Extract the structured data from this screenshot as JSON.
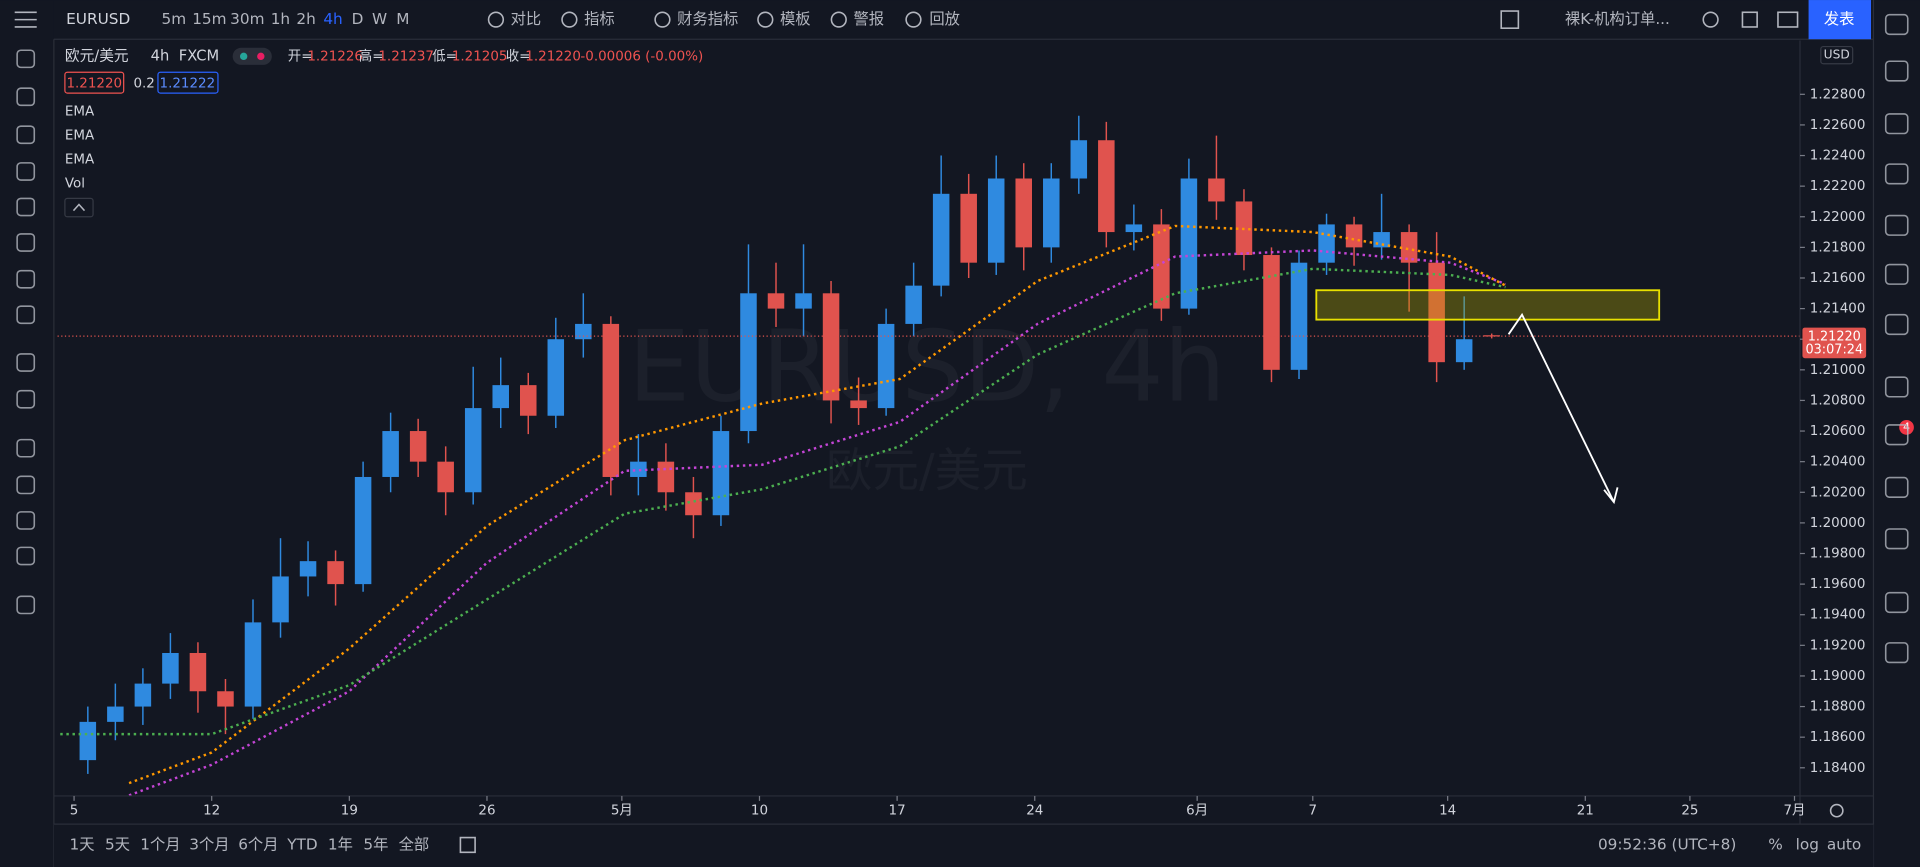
{
  "toolbar": {
    "symbol": "EURUSD",
    "timeframes": [
      "5m",
      "15m",
      "30m",
      "1h",
      "2h",
      "4h",
      "D",
      "W",
      "M"
    ],
    "buttons": [
      "对比",
      "指标",
      "财务指标",
      "模板",
      "警报",
      "回放"
    ],
    "layout_name": "裸K-机构订单...",
    "publish": "发表"
  },
  "legend": {
    "symbol": "欧元/美元",
    "interval": "4h",
    "source": "FXCM",
    "open_label": "开=",
    "open": "1.21226",
    "high_label": "高=",
    "high": "1.21237",
    "low_label": "低=",
    "low": "1.21205",
    "close_label": "收=",
    "close": "1.21220",
    "change": "-0.00006 (-0.00%)",
    "bid": "1.21220",
    "spread": "0.2",
    "ask": "1.21222",
    "indicators": [
      "EMA",
      "EMA",
      "EMA",
      "Vol"
    ]
  },
  "watermark": {
    "title": "EURUSD, 4h",
    "subtitle": "欧元/美元"
  },
  "chart_data": {
    "type": "candlestick",
    "currency": "USD",
    "x": [
      0.5,
      1.5,
      2.5,
      3.5,
      4.5,
      5.5,
      6.5,
      7.5,
      8.5,
      9.5,
      10.5,
      11.5,
      12.5,
      13.5,
      14.5,
      15.5,
      16.5,
      17.5,
      18.5,
      19.5,
      20.5,
      21.5,
      22.5,
      23.5,
      24.5,
      25.5,
      26.5,
      27.5,
      28.5,
      29.5,
      30.5,
      31.5,
      32.5,
      33.5,
      34.5,
      35.5,
      36.5,
      37.5,
      38.5,
      39.5,
      40.5,
      41.5,
      42.5,
      43.5,
      44.5,
      45.5,
      46.5,
      47.5,
      48.5,
      49.5,
      50.5,
      51.5
    ],
    "open": [
      1.1845,
      1.187,
      1.188,
      1.1895,
      1.1915,
      1.189,
      1.188,
      1.1935,
      1.1965,
      1.1975,
      1.196,
      1.203,
      1.206,
      1.204,
      1.202,
      1.2075,
      1.209,
      1.207,
      1.212,
      1.213,
      1.203,
      1.204,
      1.202,
      1.2005,
      1.206,
      1.215,
      1.214,
      1.215,
      1.208,
      1.2075,
      1.213,
      1.2155,
      1.2215,
      1.217,
      1.2225,
      1.218,
      1.2225,
      1.225,
      1.219,
      1.2195,
      1.214,
      1.2225,
      1.221,
      1.2175,
      1.21,
      1.217,
      1.2195,
      1.218,
      1.219,
      1.217,
      1.2105,
      1.21226
    ],
    "high": [
      1.188,
      1.1895,
      1.1905,
      1.1928,
      1.1922,
      1.1898,
      1.195,
      1.199,
      1.1988,
      1.1982,
      1.204,
      1.2072,
      1.2068,
      1.205,
      1.2102,
      1.2108,
      1.2098,
      1.2134,
      1.215,
      1.2135,
      1.2058,
      1.2052,
      1.203,
      1.207,
      1.2182,
      1.217,
      1.2182,
      1.2158,
      1.2095,
      1.214,
      1.217,
      1.224,
      1.2228,
      1.224,
      1.2235,
      1.2235,
      1.2266,
      1.2262,
      1.2208,
      1.2205,
      1.2238,
      1.2253,
      1.2218,
      1.218,
      1.2178,
      1.2202,
      1.22,
      1.2215,
      1.2195,
      1.219,
      1.2148,
      1.21237
    ],
    "low": [
      1.1836,
      1.1858,
      1.1868,
      1.1885,
      1.1876,
      1.1862,
      1.1872,
      1.1925,
      1.1952,
      1.1946,
      1.1955,
      1.202,
      1.203,
      1.2005,
      1.2012,
      1.2062,
      1.2058,
      1.2062,
      1.2108,
      1.2018,
      1.2018,
      1.2008,
      1.199,
      1.1998,
      1.2052,
      1.2128,
      1.2122,
      1.2065,
      1.2064,
      1.207,
      1.2122,
      1.2148,
      1.216,
      1.2162,
      1.2165,
      1.217,
      1.2215,
      1.218,
      1.2178,
      1.2132,
      1.2136,
      1.2198,
      1.2165,
      1.2092,
      1.2094,
      1.2162,
      1.2168,
      1.2172,
      1.2138,
      1.2092,
      1.21,
      1.21205
    ],
    "close": [
      1.187,
      1.188,
      1.1895,
      1.1915,
      1.189,
      1.188,
      1.1935,
      1.1965,
      1.1975,
      1.196,
      1.203,
      1.206,
      1.204,
      1.202,
      1.2075,
      1.209,
      1.207,
      1.212,
      1.213,
      1.203,
      1.204,
      1.202,
      1.2005,
      1.206,
      1.215,
      1.214,
      1.215,
      1.208,
      1.2075,
      1.213,
      1.2155,
      1.2215,
      1.217,
      1.2225,
      1.218,
      1.2225,
      1.225,
      1.219,
      1.2195,
      1.214,
      1.2225,
      1.221,
      1.2175,
      1.21,
      1.217,
      1.2195,
      1.218,
      1.219,
      1.217,
      1.2105,
      1.212,
      1.2122
    ],
    "up_color": "#2f8ae0",
    "down_color": "#e0534e",
    "series": [
      {
        "name": "EMA",
        "color": "#ff9800",
        "x": [
          2,
          5,
          10,
          15,
          20,
          25,
          30,
          35,
          40,
          45,
          50,
          52
        ],
        "values": [
          1.183,
          1.185,
          1.1918,
          1.1998,
          1.2054,
          1.2078,
          1.2094,
          1.2158,
          1.2194,
          1.219,
          1.2174,
          1.2155
        ]
      },
      {
        "name": "EMA",
        "color": "#c445d6",
        "x": [
          2,
          5,
          10,
          15,
          20,
          25,
          30,
          35,
          40,
          45,
          50,
          52
        ],
        "values": [
          1.1822,
          1.1842,
          1.189,
          1.1974,
          1.2034,
          1.2038,
          1.2066,
          1.213,
          1.2174,
          1.2178,
          1.217,
          1.2156
        ]
      },
      {
        "name": "EMA",
        "color": "#4caf50",
        "x": [
          -0.5,
          5,
          10,
          15,
          20,
          25,
          30,
          35,
          40,
          45,
          50,
          52
        ],
        "values": [
          1.1862,
          1.1862,
          1.1894,
          1.195,
          1.2006,
          1.2022,
          1.205,
          1.211,
          1.215,
          1.2166,
          1.2162,
          1.2154
        ]
      }
    ],
    "price_line": {
      "value": 1.2122,
      "label": "1.21220",
      "countdown": "03:07:24",
      "color": "#e0534e"
    },
    "xlim": [
      -0.6,
      62.7
    ],
    "xticks": [
      {
        "value": 0,
        "label": "5"
      },
      {
        "value": 5,
        "label": "12"
      },
      {
        "value": 10,
        "label": "19"
      },
      {
        "value": 15,
        "label": "26"
      },
      {
        "value": 19.9,
        "label": "5月"
      },
      {
        "value": 24.9,
        "label": "10"
      },
      {
        "value": 29.9,
        "label": "17"
      },
      {
        "value": 34.9,
        "label": "24"
      },
      {
        "value": 40.8,
        "label": "6月"
      },
      {
        "value": 45,
        "label": "7"
      },
      {
        "value": 49.9,
        "label": "14"
      },
      {
        "value": 54.9,
        "label": "21"
      },
      {
        "value": 58.7,
        "label": "25"
      },
      {
        "value": 62.5,
        "label": "7月"
      }
    ],
    "ylim": [
      1.18216,
      1.23152
    ],
    "yticks": [
      {
        "value": 1.184,
        "label": "1.18400"
      },
      {
        "value": 1.186,
        "label": "1.18600"
      },
      {
        "value": 1.188,
        "label": "1.18800"
      },
      {
        "value": 1.19,
        "label": "1.19000"
      },
      {
        "value": 1.192,
        "label": "1.19200"
      },
      {
        "value": 1.194,
        "label": "1.19400"
      },
      {
        "value": 1.196,
        "label": "1.19600"
      },
      {
        "value": 1.198,
        "label": "1.19800"
      },
      {
        "value": 1.2,
        "label": "1.20000"
      },
      {
        "value": 1.202,
        "label": "1.20200"
      },
      {
        "value": 1.204,
        "label": "1.20400"
      },
      {
        "value": 1.206,
        "label": "1.20600"
      },
      {
        "value": 1.208,
        "label": "1.20800"
      },
      {
        "value": 1.21,
        "label": "1.21000"
      },
      {
        "value": 1.212,
        "label": "1.21200"
      },
      {
        "value": 1.214,
        "label": "1.21400"
      },
      {
        "value": 1.216,
        "label": "1.21600"
      },
      {
        "value": 1.218,
        "label": "1.21800"
      },
      {
        "value": 1.22,
        "label": "1.22000"
      },
      {
        "value": 1.222,
        "label": "1.22200"
      },
      {
        "value": 1.224,
        "label": "1.22400"
      },
      {
        "value": 1.226,
        "label": "1.22600"
      },
      {
        "value": 1.228,
        "label": "1.22800"
      }
    ],
    "grid": false
  },
  "bottom_bar": {
    "ranges": [
      "1天",
      "5天",
      "1个月",
      "3个月",
      "6个月",
      "YTD",
      "1年",
      "5年",
      "全部"
    ],
    "clock": "09:52:36 (UTC+8)",
    "percent": "%",
    "log": "log",
    "auto": "auto"
  },
  "sidebar": {
    "badge": "4"
  }
}
